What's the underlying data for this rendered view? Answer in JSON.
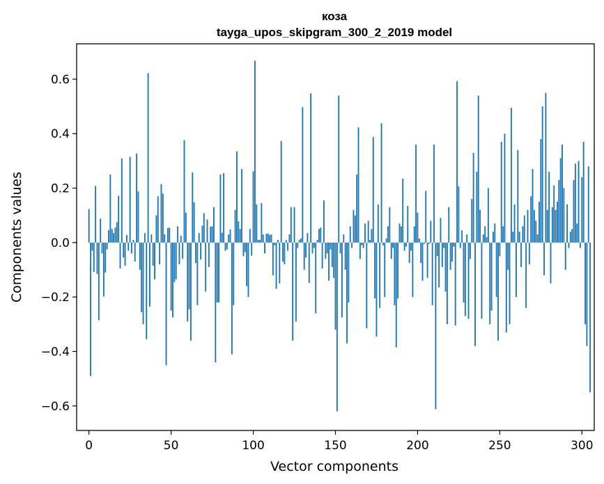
{
  "chart_data": {
    "type": "bar",
    "title": "коза",
    "subtitle": "tayga_upos_skipgram_300_2_2019 model",
    "xlabel": "Vector components",
    "ylabel": "Components values",
    "xlim": [
      -7.5,
      307.5
    ],
    "ylim": [
      -0.69,
      0.73
    ],
    "x_ticks": [
      0,
      50,
      100,
      150,
      200,
      250,
      300
    ],
    "x_tick_labels": [
      "0",
      "50",
      "100",
      "150",
      "200",
      "250",
      "300"
    ],
    "y_ticks": [
      -0.6,
      -0.4,
      -0.2,
      0.0,
      0.2,
      0.4,
      0.6
    ],
    "y_tick_labels": [
      "−0.6",
      "−0.4",
      "−0.2",
      "0.0",
      "0.2",
      "0.4",
      "0.6"
    ],
    "bar_color": "#1f77b4",
    "grid": false,
    "values": [
      0.123,
      -0.49,
      -0.03,
      -0.108,
      0.208,
      -0.115,
      -0.285,
      0.088,
      -0.04,
      -0.198,
      -0.11,
      -0.025,
      0.046,
      0.25,
      0.05,
      0.035,
      0.055,
      0.075,
      0.172,
      -0.095,
      0.309,
      -0.055,
      -0.085,
      0.028,
      -0.03,
      0.315,
      -0.04,
      0.01,
      -0.07,
      0.327,
      0.188,
      -0.1,
      -0.255,
      -0.3,
      0.035,
      -0.355,
      0.622,
      -0.235,
      0.03,
      -0.085,
      -0.135,
      0.1,
      0.17,
      -0.08,
      0.215,
      0.18,
      0.03,
      -0.45,
      0.053,
      0.055,
      -0.25,
      -0.275,
      -0.145,
      -0.135,
      0.06,
      -0.08,
      0.025,
      -0.06,
      0.376,
      0.11,
      -0.29,
      -0.245,
      -0.36,
      0.258,
      0.148,
      -0.075,
      -0.23,
      0.035,
      -0.062,
      0.062,
      0.108,
      -0.18,
      0.085,
      -0.09,
      0.058,
      0.06,
      0.13,
      -0.44,
      -0.22,
      -0.22,
      0.25,
      0.036,
      0.255,
      -0.03,
      -0.025,
      0.03,
      0.048,
      -0.41,
      -0.23,
      0.12,
      0.335,
      0.078,
      0.05,
      0.27,
      -0.05,
      -0.035,
      -0.16,
      -0.2,
      0.05,
      -0.048,
      0.262,
      0.668,
      0.14,
      0.01,
      0.01,
      0.145,
      0.03,
      -0.04,
      0.033,
      0.033,
      0.028,
      0.03,
      -0.12,
      -0.01,
      -0.17,
      0.01,
      -0.15,
      0.373,
      -0.07,
      -0.08,
      0.01,
      -0.03,
      0.03,
      0.13,
      -0.36,
      0.13,
      -0.29,
      -0.02,
      0.01,
      0.015,
      0.497,
      -0.1,
      -0.055,
      0.035,
      -0.148,
      0.548,
      -0.04,
      -0.02,
      -0.26,
      0.01,
      0.05,
      0.055,
      -0.095,
      0.155,
      -0.06,
      -0.04,
      -0.14,
      -0.025,
      -0.09,
      -0.13,
      -0.32,
      -0.62,
      0.54,
      -0.04,
      -0.275,
      0.03,
      -0.1,
      -0.37,
      -0.22,
      0.06,
      -0.02,
      0.12,
      0.1,
      0.25,
      0.423,
      -0.06,
      -0.01,
      -0.02,
      0.07,
      -0.315,
      0.08,
      0.01,
      0.05,
      0.388,
      -0.205,
      -0.345,
      0.14,
      -0.24,
      0.438,
      -0.01,
      -0.2,
      0.015,
      0.06,
      0.13,
      -0.06,
      -0.02,
      -0.23,
      -0.385,
      -0.205,
      0.07,
      0.06,
      0.235,
      -0.03,
      -0.015,
      0.135,
      -0.075,
      -0.03,
      -0.2,
      0.06,
      0.36,
      0.11,
      0.015,
      -0.075,
      -0.14,
      -0.005,
      0.19,
      -0.13,
      -0.005,
      0.08,
      -0.23,
      0.36,
      -0.612,
      -0.05,
      -0.165,
      0.09,
      -0.09,
      -0.02,
      -0.18,
      -0.3,
      0.13,
      -0.1,
      -0.07,
      -0.015,
      -0.305,
      0.593,
      0.207,
      -0.02,
      0.045,
      -0.22,
      -0.27,
      0.03,
      -0.28,
      -0.06,
      0.16,
      0.33,
      -0.38,
      0.26,
      0.54,
      0.12,
      -0.28,
      0.03,
      0.06,
      0.02,
      0.2,
      -0.3,
      -0.25,
      0.04,
      0.07,
      -0.2,
      -0.36,
      -0.05,
      0.37,
      0.06,
      0.4,
      -0.33,
      -0.1,
      -0.3,
      0.495,
      0.04,
      0.14,
      -0.2,
      0.34,
      0.04,
      -0.09,
      0.06,
      0.1,
      -0.24,
      0.12,
      -0.08,
      0.17,
      0.27,
      0.12,
      0.08,
      0.03,
      0.15,
      0.38,
      0.5,
      -0.12,
      0.55,
      0.12,
      0.26,
      -0.15,
      0.13,
      0.21,
      0.12,
      0.15,
      0.23,
      0.31,
      0.36,
      0.2,
      -0.1,
      0.14,
      -0.02,
      0.04,
      0.05,
      0.23,
      0.29,
      0.07,
      0.3,
      -0.02,
      0.24,
      0.37,
      -0.3,
      -0.38,
      0.28,
      -0.55
    ]
  }
}
